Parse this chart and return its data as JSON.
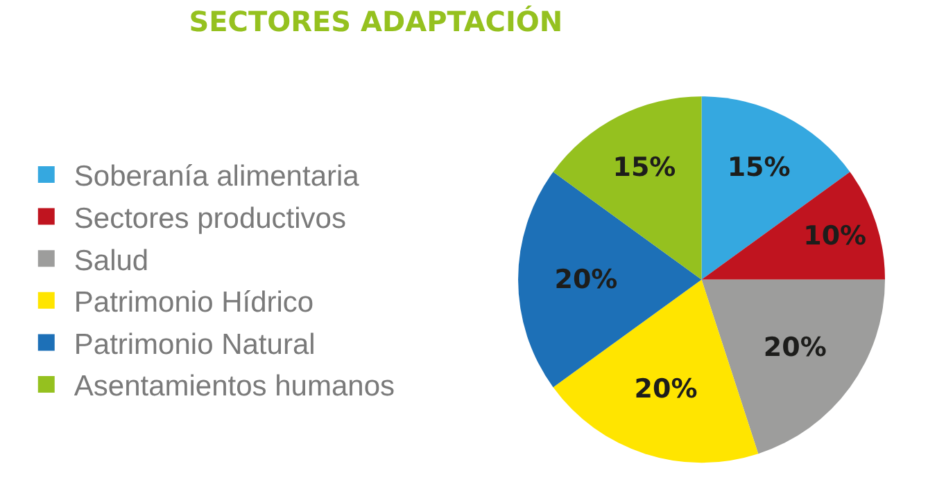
{
  "chart_data": {
    "type": "pie",
    "title": "SECTORES ADAPTACIÓN",
    "categories": [
      "Soberanía alimentaria",
      "Sectores productivos",
      "Salud",
      "Patrimonio Hídrico",
      "Patrimonio Natural",
      "Asentamientos humanos"
    ],
    "values": [
      15,
      10,
      20,
      20,
      20,
      15
    ],
    "colors": [
      "#35a8e0",
      "#c0141f",
      "#9d9d9c",
      "#ffe500",
      "#1d70b7",
      "#95c11f"
    ],
    "value_labels": [
      "15%",
      "10%",
      "20%",
      "20%",
      "20%",
      "15%"
    ],
    "legend": "left"
  }
}
